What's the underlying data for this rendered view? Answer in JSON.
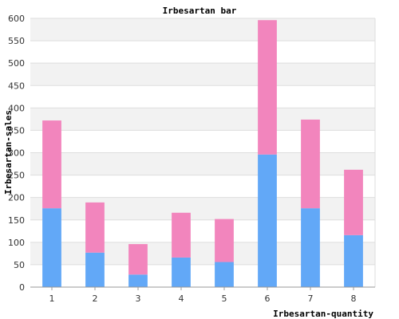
{
  "chart_data": {
    "type": "bar",
    "stacked": true,
    "title": "Irbesartan bar",
    "xlabel": "Irbesartan-quantity",
    "ylabel": "Irbesartan-sales",
    "categories": [
      "1",
      "2",
      "3",
      "4",
      "5",
      "6",
      "7",
      "8"
    ],
    "ylim": [
      0,
      600
    ],
    "yticks": [
      0,
      50,
      100,
      150,
      200,
      250,
      300,
      350,
      400,
      450,
      500,
      550,
      600
    ],
    "grid": true,
    "series": [
      {
        "values": [
          176,
          77,
          28,
          66,
          56,
          296,
          176,
          116
        ],
        "color": "#62a8f7"
      },
      {
        "values": [
          196,
          112,
          68,
          100,
          96,
          300,
          198,
          146
        ],
        "color": "#f285bd"
      }
    ]
  }
}
